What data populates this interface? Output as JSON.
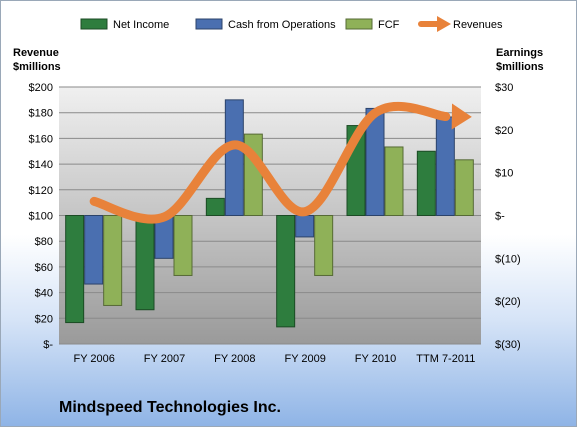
{
  "company": "Mindspeed Technologies Inc.",
  "chart_data": {
    "type": "bar",
    "categories": [
      "FY 2006",
      "FY 2007",
      "FY 2008",
      "FY 2009",
      "FY 2010",
      "TTM 7-2011"
    ],
    "left_axis": {
      "label_line1": "Revenue",
      "label_line2": "$millions",
      "ylim": [
        0,
        200
      ],
      "ticks": [
        "$-",
        "$20",
        "$40",
        "$60",
        "$80",
        "$100",
        "$120",
        "$140",
        "$160",
        "$180",
        "$200"
      ]
    },
    "right_axis": {
      "label_line1": "Earnings",
      "label_line2": "$millions",
      "ylim": [
        -30,
        30
      ],
      "ticks": [
        "$(30)",
        "$(20)",
        "$(10)",
        "$-",
        "$10",
        "$20",
        "$30"
      ]
    },
    "series": [
      {
        "name": "Net Income",
        "axis": "right",
        "color": "#2e7d3e",
        "values": [
          -25,
          -22,
          4,
          -26,
          21,
          15
        ]
      },
      {
        "name": "Cash from Operations",
        "axis": "right",
        "color": "#4a6fb0",
        "values": [
          -16,
          -10,
          27,
          -5,
          25,
          23
        ]
      },
      {
        "name": "FCF",
        "axis": "right",
        "color": "#8fb158",
        "values": [
          -21,
          -14,
          19,
          -14,
          16,
          13
        ]
      }
    ],
    "line_series": {
      "name": "Revenues",
      "axis": "left",
      "color": "#e8823a",
      "values": [
        111,
        99,
        155,
        103,
        180,
        177
      ]
    },
    "grid": true,
    "legend": "top"
  }
}
